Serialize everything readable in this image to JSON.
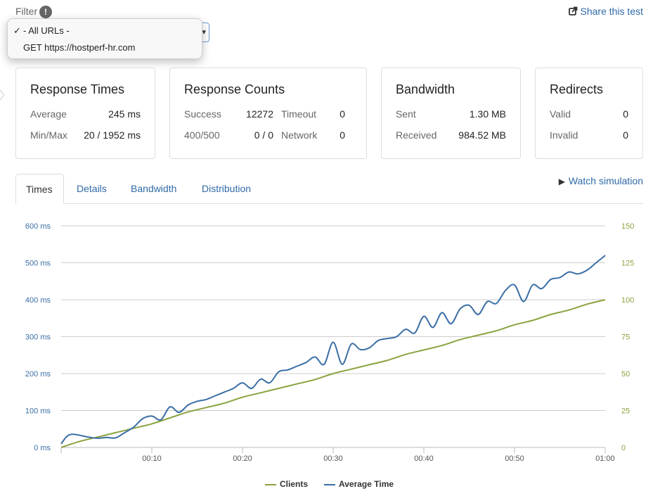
{
  "filter": {
    "label": "Filter",
    "info_glyph": "!",
    "dropdown": {
      "options": [
        {
          "label": "- All URLs -",
          "checked": true
        },
        {
          "label": "GET https://hostperf-hr.com",
          "checked": false
        }
      ]
    }
  },
  "share": {
    "label": "Share this test",
    "icon": "share-icon"
  },
  "cards": {
    "response_times": {
      "title": "Response Times",
      "average_label": "Average",
      "average_value": "245 ms",
      "minmax_label": "Min/Max",
      "minmax_value": "20 / 1952 ms"
    },
    "response_counts": {
      "title": "Response Counts",
      "success_label": "Success",
      "success_value": "12272",
      "timeout_label": "Timeout",
      "timeout_value": "0",
      "err_label": "400/500",
      "err_value": "0 / 0",
      "network_label": "Network",
      "network_value": "0"
    },
    "bandwidth": {
      "title": "Bandwidth",
      "sent_label": "Sent",
      "sent_value": "1.30 MB",
      "received_label": "Received",
      "received_value": "984.52 MB"
    },
    "redirects": {
      "title": "Redirects",
      "valid_label": "Valid",
      "valid_value": "0",
      "invalid_label": "Invalid",
      "invalid_value": "0"
    }
  },
  "tabs": [
    {
      "label": "Times",
      "active": true
    },
    {
      "label": "Details",
      "active": false
    },
    {
      "label": "Bandwidth",
      "active": false
    },
    {
      "label": "Distribution",
      "active": false
    }
  ],
  "watch": {
    "label": "Watch simulation",
    "icon": "play-icon"
  },
  "colors": {
    "clients": "#8aa33f",
    "avg_time": "#3a6ea5",
    "link": "#2f6aa8"
  },
  "chart_data": {
    "type": "line",
    "x_ticks": [
      "00:10",
      "00:20",
      "00:30",
      "00:40",
      "00:50",
      "01:00"
    ],
    "y_left_ticks": [
      "0 ms",
      "100 ms",
      "200 ms",
      "300 ms",
      "400 ms",
      "500 ms",
      "600 ms"
    ],
    "y_right_ticks": [
      "0",
      "25",
      "50",
      "75",
      "100",
      "125",
      "150"
    ],
    "ylim_left": [
      0,
      600
    ],
    "ylim_right": [
      0,
      150
    ],
    "xlim": [
      0,
      60
    ],
    "grid": true,
    "legend_position": "bottom",
    "series": [
      {
        "name": "Clients",
        "axis": "right",
        "x": [
          0,
          2,
          4,
          6,
          8,
          10,
          12,
          14,
          16,
          18,
          20,
          22,
          24,
          26,
          28,
          30,
          32,
          34,
          36,
          38,
          40,
          42,
          44,
          46,
          48,
          50,
          52,
          54,
          56,
          58,
          60
        ],
        "values": [
          0,
          4,
          7,
          10,
          13,
          16,
          20,
          24,
          27,
          30,
          34,
          37,
          40,
          43,
          46,
          50,
          53,
          56,
          59,
          63,
          66,
          69,
          73,
          76,
          79,
          83,
          86,
          90,
          93,
          97,
          100
        ]
      },
      {
        "name": "Average Time",
        "axis": "left",
        "x": [
          0,
          1,
          3,
          4,
          5,
          6,
          7,
          8,
          9,
          10,
          11,
          12,
          13,
          14,
          15,
          16,
          17,
          18,
          19,
          20,
          21,
          22,
          23,
          24,
          25,
          26,
          27,
          28,
          29,
          30,
          31,
          32,
          33,
          34,
          35,
          36,
          37,
          38,
          39,
          40,
          41,
          42,
          43,
          44,
          45,
          46,
          47,
          48,
          49,
          50,
          51,
          52,
          53,
          54,
          55,
          56,
          57,
          58,
          59,
          60
        ],
        "values": [
          10,
          35,
          28,
          25,
          27,
          26,
          40,
          55,
          78,
          85,
          75,
          110,
          95,
          115,
          125,
          130,
          140,
          150,
          160,
          175,
          160,
          185,
          175,
          205,
          210,
          220,
          230,
          245,
          225,
          285,
          225,
          280,
          265,
          270,
          290,
          295,
          300,
          320,
          310,
          355,
          325,
          365,
          335,
          375,
          385,
          360,
          395,
          390,
          425,
          440,
          395,
          440,
          430,
          455,
          460,
          475,
          470,
          480,
          500,
          520
        ]
      }
    ]
  }
}
